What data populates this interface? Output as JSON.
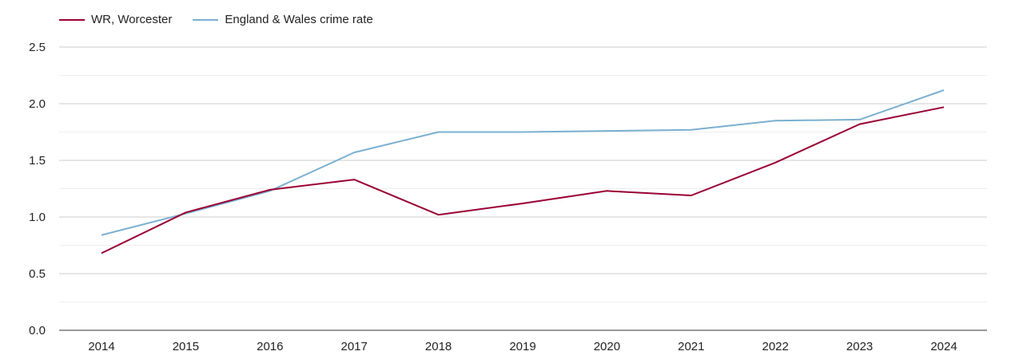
{
  "chart_data": {
    "type": "line",
    "title": "",
    "xlabel": "",
    "ylabel": "",
    "categories": [
      "2014",
      "2015",
      "2016",
      "2017",
      "2018",
      "2019",
      "2020",
      "2021",
      "2022",
      "2023",
      "2024"
    ],
    "series": [
      {
        "name": "WR, Worcester",
        "color": "#990033",
        "values": [
          0.68,
          1.04,
          1.24,
          1.33,
          1.02,
          1.12,
          1.23,
          1.19,
          1.48,
          1.82,
          1.97
        ]
      },
      {
        "name": "England & Wales crime rate",
        "color": "#7aafd0",
        "values": [
          0.84,
          1.03,
          1.23,
          1.57,
          1.75,
          1.75,
          1.76,
          1.77,
          1.85,
          1.86,
          2.12
        ]
      }
    ],
    "ylim": [
      0,
      2.5
    ],
    "yticks": [
      "0.0",
      "0.5",
      "1.0",
      "1.5",
      "2.0",
      "2.5"
    ],
    "grid": true,
    "legend_position": "top-left"
  }
}
